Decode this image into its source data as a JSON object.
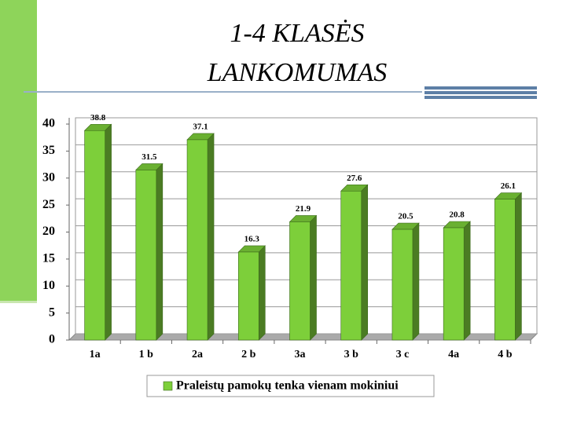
{
  "slide_title": [
    "1-4 KLASĖS",
    "LANKOMUMAS"
  ],
  "chart_data": {
    "type": "bar3d",
    "categories": [
      "1a",
      "1 b",
      "2a",
      "2 b",
      "3a",
      "3 b",
      "3 c",
      "4a",
      "4 b"
    ],
    "series": [
      {
        "name": "Praleistų pamokų tenka vienam mokiniui",
        "color": "#7dcf3a",
        "values": [
          38.8,
          31.5,
          37.1,
          16.3,
          21.9,
          27.6,
          20.5,
          20.8,
          26.1
        ]
      }
    ],
    "ylim": [
      0,
      40
    ],
    "yticks": [
      0,
      5,
      10,
      15,
      20,
      25,
      30,
      35,
      40
    ],
    "grid": true
  }
}
